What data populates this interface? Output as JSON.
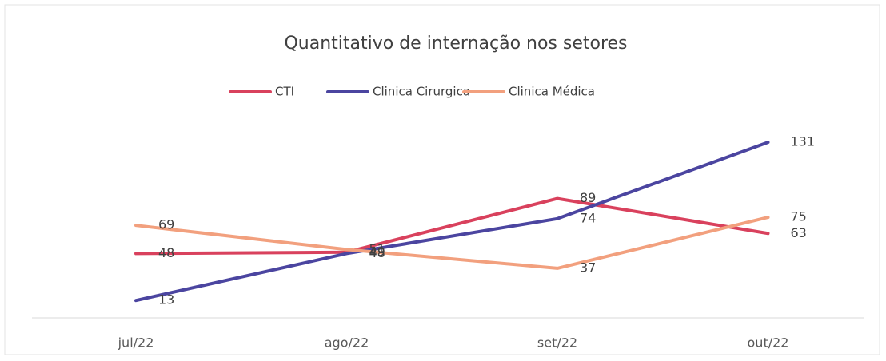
{
  "chart_data": {
    "type": "line",
    "title": "Quantitativo de internação nos setores",
    "categories": [
      "jul/22",
      "ago/22",
      "set/22",
      "out/22"
    ],
    "series": [
      {
        "name": "CTI",
        "color": "#d9415d",
        "values": [
          48,
          49,
          89,
          63
        ]
      },
      {
        "name": "Clinica Cirurgica",
        "color": "#4b45a0",
        "values": [
          13,
          48,
          74,
          131
        ]
      },
      {
        "name": "Clinica Médica",
        "color": "#f2a07e",
        "values": [
          69,
          51,
          37,
          75
        ]
      }
    ],
    "ylim": [
      0,
      140
    ],
    "legend": "top"
  }
}
